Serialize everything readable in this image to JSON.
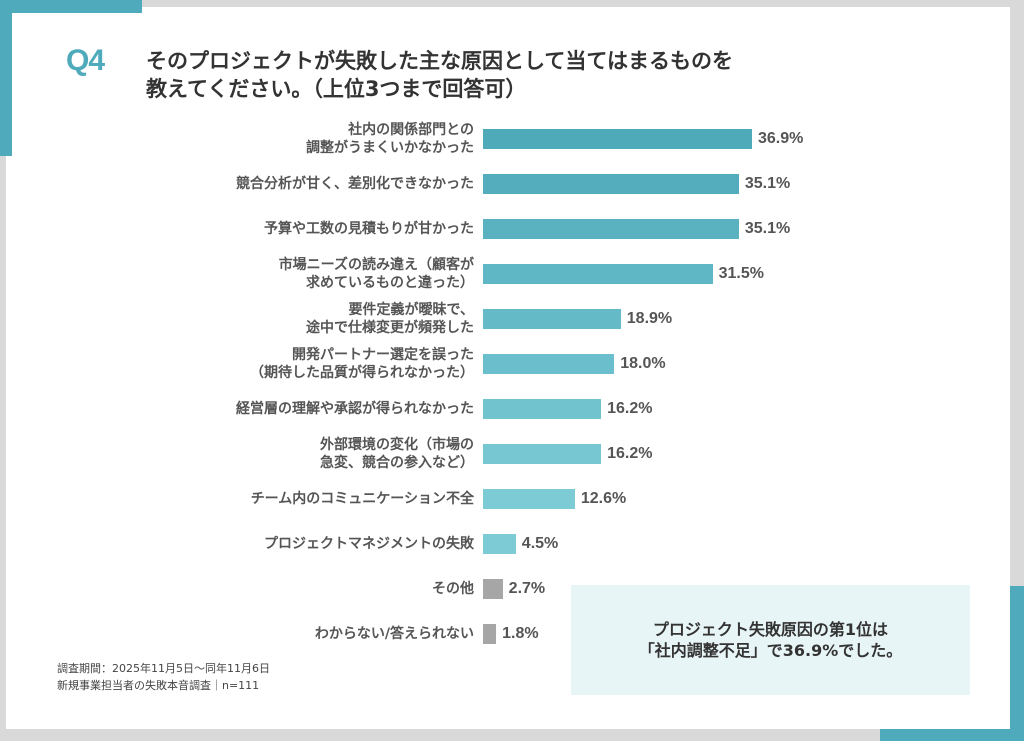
{
  "header": {
    "badge": "Q4",
    "title_line1": "そのプロジェクトが失敗した主な原因として当てはまるものを",
    "title_line2": "教えてください。（上位3つまで回答可）"
  },
  "colors": {
    "accent": "#4fabbb",
    "bar_dark": "#4ea9b9",
    "bar_light": "#7ccbd5",
    "bar_other": "#a6a6a6",
    "callout_bg": "#e8f5f6"
  },
  "chart_data": {
    "type": "bar",
    "orientation": "horizontal",
    "title": "そのプロジェクトが失敗した主な原因として当てはまるものを教えてください。（上位3つまで回答可）",
    "unit": "%",
    "xlim": [
      0,
      40
    ],
    "categories": [
      [
        "社内の関係部門との",
        "調整がうまくいかなかった"
      ],
      [
        "競合分析が甘く、差別化できなかった"
      ],
      [
        "予算や工数の見積もりが甘かった"
      ],
      [
        "市場ニーズの読み違え（顧客が",
        "求めているものと違った）"
      ],
      [
        "要件定義が曖昧で、",
        "途中で仕様変更が頻発した"
      ],
      [
        "開発パートナー選定を誤った",
        "（期待した品質が得られなかった）"
      ],
      [
        "経営層の理解や承認が得られなかった"
      ],
      [
        "外部環境の変化（市場の",
        "急変、競合の参入など）"
      ],
      [
        "チーム内のコミュニケーション不全"
      ],
      [
        "プロジェクトマネジメントの失敗"
      ],
      [
        "その他"
      ],
      [
        "わからない/答えられない"
      ]
    ],
    "values": [
      36.9,
      35.1,
      35.1,
      31.5,
      18.9,
      18.0,
      16.2,
      16.2,
      12.6,
      4.5,
      2.7,
      1.8
    ],
    "value_labels": [
      "36.9%",
      "35.1%",
      "35.1%",
      "31.5%",
      "18.9%",
      "18.0%",
      "16.2%",
      "16.2%",
      "12.6%",
      "4.5%",
      "2.7%",
      "1.8%"
    ],
    "gray_categories": [
      10,
      11
    ]
  },
  "footer": {
    "period": "調査期間：2025年11月5日～同年11月6日",
    "survey": "新規事業担当者の失敗本音調査｜n=111"
  },
  "callout": {
    "line1": "プロジェクト失敗原因の第1位は",
    "line2": "「社内調整不足」で36.9%でした。"
  }
}
